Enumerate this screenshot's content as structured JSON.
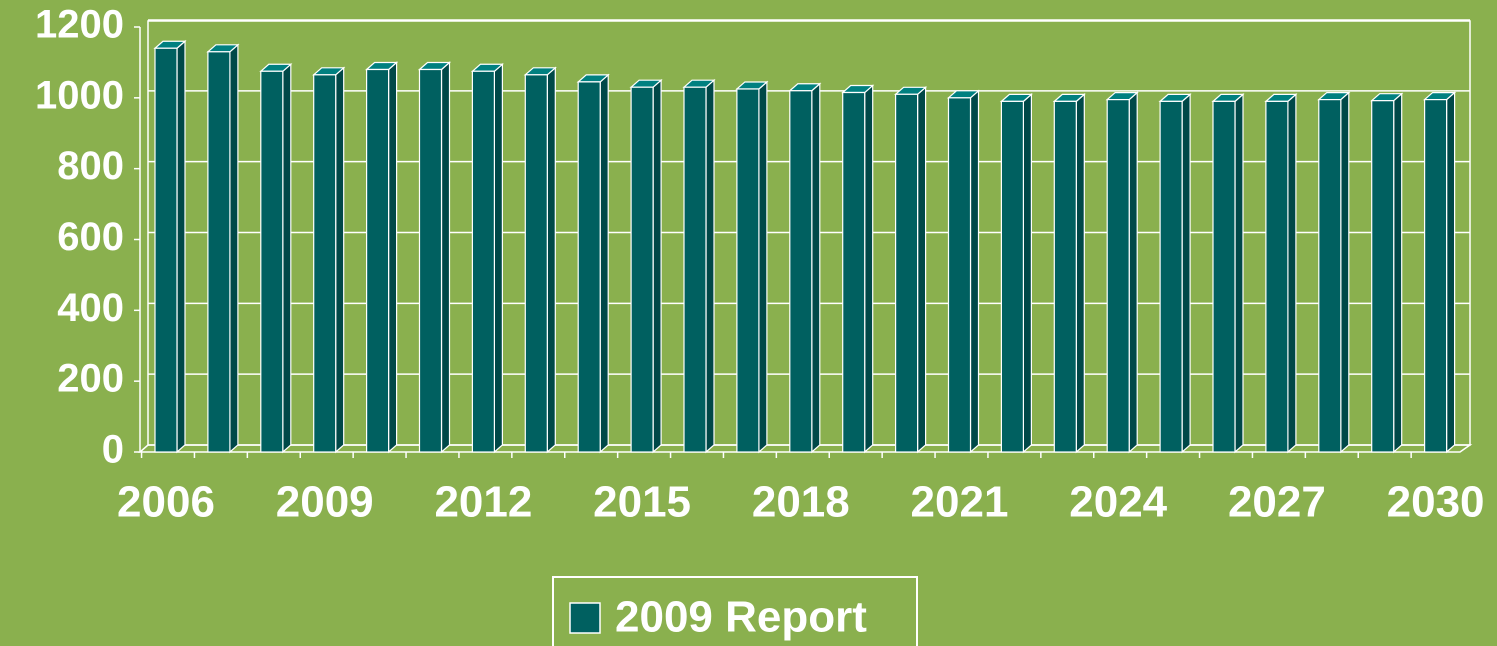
{
  "chart_data": {
    "type": "bar",
    "categories": [
      "2006",
      null,
      null,
      "2009",
      null,
      null,
      "2012",
      null,
      null,
      "2015",
      null,
      null,
      "2018",
      null,
      null,
      "2021",
      null,
      null,
      "2024",
      null,
      null,
      "2027",
      null,
      null,
      "2030"
    ],
    "series": [
      {
        "name": "2009 Report",
        "color": "#006060",
        "values": [
          1140,
          1130,
          1075,
          1065,
          1080,
          1080,
          1075,
          1065,
          1045,
          1030,
          1030,
          1025,
          1020,
          1015,
          1010,
          1000,
          990,
          990,
          995,
          990,
          990,
          990,
          995,
          992,
          995
        ]
      }
    ],
    "ylim": [
      0,
      1200
    ],
    "yticks": [
      0,
      200,
      400,
      600,
      800,
      1000,
      1200
    ],
    "grid": true,
    "legend": "bottom"
  }
}
